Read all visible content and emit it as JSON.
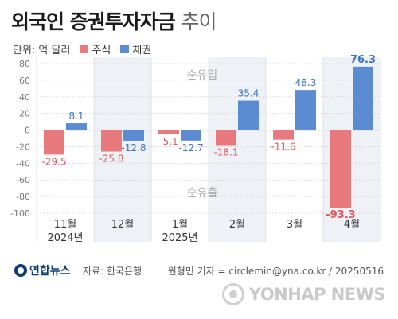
{
  "header": {
    "title": "외국인 증권투자자금",
    "title_light": "추이"
  },
  "legend": {
    "unit": "단위: 억 달러",
    "stock_label": "주식",
    "bond_label": "채권"
  },
  "colors": {
    "stock": "#e8797c",
    "bond": "#5b8bd0",
    "grid": "#d8d8d8",
    "band": "#eef1f5"
  },
  "chart_data": {
    "type": "bar",
    "categories": [
      "11월\n2024년",
      "12월",
      "1월\n2025년",
      "2월",
      "3월",
      "4월"
    ],
    "series": [
      {
        "name": "주식",
        "values": [
          -29.5,
          -25.8,
          -5.1,
          -18.1,
          -11.6,
          -93.3
        ]
      },
      {
        "name": "채권",
        "values": [
          8.1,
          -12.8,
          -12.7,
          35.4,
          48.3,
          76.3
        ]
      }
    ],
    "yticks": [
      80,
      60,
      40,
      20,
      0,
      -20,
      -40,
      -60,
      -80,
      -100
    ],
    "ylim": [
      -100,
      80
    ],
    "annotations": {
      "inflow": "순유입",
      "outflow": "순유출"
    }
  },
  "footer": {
    "logo": "연합뉴스",
    "source": "자료: 한국은행",
    "credit": "원형민 기자 = circlemin@yna.co.kr / 20250516",
    "watermark": "YONHAP NEWS"
  }
}
